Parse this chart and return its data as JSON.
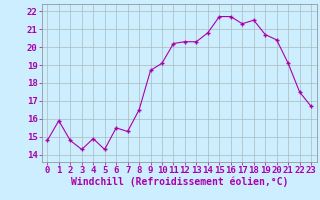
{
  "x": [
    0,
    1,
    2,
    3,
    4,
    5,
    6,
    7,
    8,
    9,
    10,
    11,
    12,
    13,
    14,
    15,
    16,
    17,
    18,
    19,
    20,
    21,
    22,
    23
  ],
  "y": [
    14.8,
    15.9,
    14.8,
    14.3,
    14.9,
    14.3,
    15.5,
    15.3,
    16.5,
    18.7,
    19.1,
    20.2,
    20.3,
    20.3,
    20.8,
    21.7,
    21.7,
    21.3,
    21.5,
    20.7,
    20.4,
    19.1,
    17.5,
    16.7
  ],
  "line_color": "#aa00aa",
  "marker_color": "#aa00aa",
  "bg_color": "#cceeff",
  "grid_color": "#aabbbb",
  "xlabel": "Windchill (Refroidissement éolien,°C)",
  "ylabel_ticks": [
    14,
    15,
    16,
    17,
    18,
    19,
    20,
    21,
    22
  ],
  "xlim": [
    -0.5,
    23.5
  ],
  "ylim": [
    13.6,
    22.4
  ],
  "tick_color": "#aa00aa",
  "label_color": "#aa00aa",
  "font_size": 6.5,
  "xlabel_font_size": 7.0
}
